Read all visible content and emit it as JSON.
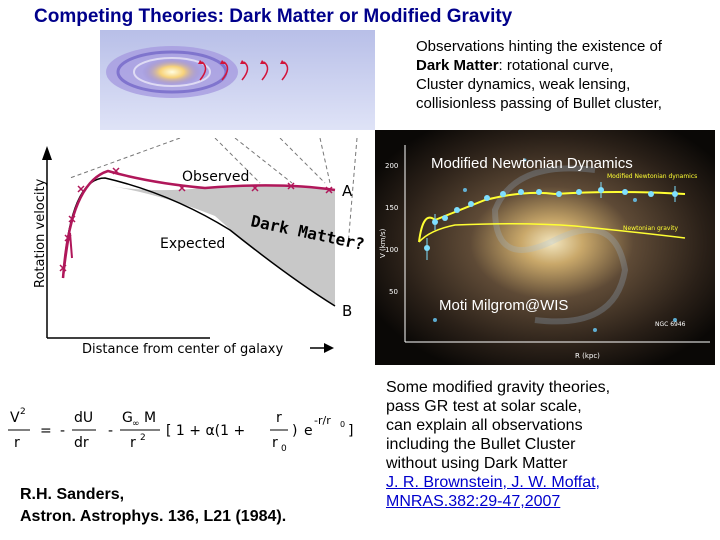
{
  "title": "Competing Theories: Dark Matter or Modified Gravity",
  "observations": {
    "line1": "Observations hinting the existence of",
    "dm_bold": "Dark Matter",
    "line2_rest": ": rotational curve,",
    "line3": "Cluster dynamics, weak lensing,",
    "line4": "collisionless passing of Bullet cluster,"
  },
  "rotation_curve": {
    "ylabel": "Rotation velocity",
    "xlabel": "Distance from center of galaxy",
    "observed_label": "Observed",
    "expected_label": "Expected",
    "point_a": "A",
    "point_b": "B",
    "dark_matter_label": "Dark Matter?"
  },
  "mond_figure": {
    "title": "Modified Newtonian Dynamics",
    "credit": "Moti Milgrom@WIS",
    "legend_mond": "Modified Newtonian dynamics",
    "legend_newton": "Newtonian gravity",
    "ylabel": "V (km/s)",
    "xlabel": "R (kpc)",
    "galaxy_name": "NGC 6946",
    "yticks": [
      "200",
      "150",
      "100",
      "50"
    ]
  },
  "equation": {
    "v2": "V",
    "sq": "2",
    "r": "r",
    "eq": "=",
    "minus": "-",
    "dU": "dU",
    "dr": "dr",
    "Ginf": "G",
    "inf": "∞",
    "M": "M",
    "r2": "r",
    "sq2": "2",
    "bracket": "[ 1 + α(1 +",
    "rr0_num": "r",
    "rr0_den": "r",
    "zero": "0",
    "close": ")",
    "e": "e",
    "exp": "-r/r",
    "exp0": "0",
    "closeb": "]"
  },
  "reference": {
    "line1": "R.H. Sanders,",
    "line2": "Astron. Astrophys. 136, L21 (1984)."
  },
  "modified_gravity": {
    "line1": "Some modified gravity theories,",
    "line2": "pass GR test at solar scale,",
    "line3": "can explain all observations",
    "line4": "including the Bullet Cluster",
    "line5": "without using Dark Matter",
    "link1": "J. R. Brownstein, J. W. Moffat,",
    "link2": "MNRAS.382:29-47,2007"
  },
  "colors": {
    "title": "#00008b",
    "curve": "#b0175a",
    "dm_fill": "#c8c8c8",
    "mond_line": "#ffff33",
    "link": "#0000cc"
  }
}
